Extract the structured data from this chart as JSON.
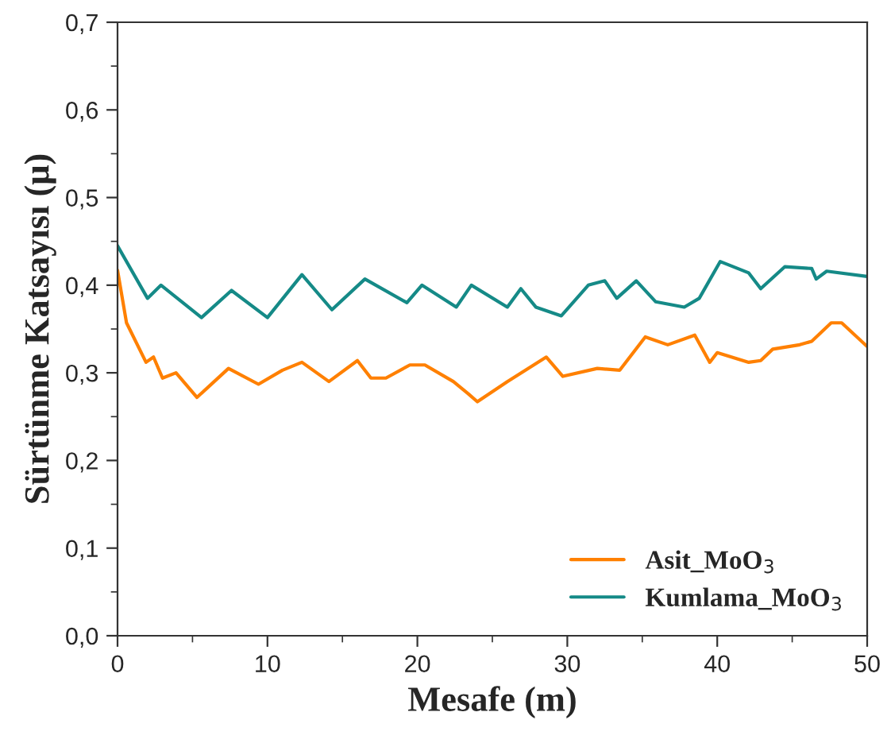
{
  "chart_data": {
    "type": "line",
    "xlabel": "Mesafe (m)",
    "ylabel": "Sürtünme Katsayısı (μ)",
    "xlim": [
      0,
      50
    ],
    "xticks": [
      0,
      10,
      20,
      30,
      40,
      50
    ],
    "ylim": [
      0,
      0.7
    ],
    "yticks": [
      {
        "value": 0,
        "label": "0,0"
      },
      {
        "value": 0.1,
        "label": "0,1"
      },
      {
        "value": 0.2,
        "label": "0,2"
      },
      {
        "value": 0.3,
        "label": "0,3"
      },
      {
        "value": 0.4,
        "label": "0,4"
      },
      {
        "value": 0.5,
        "label": "0,5"
      },
      {
        "value": 0.6,
        "label": "0,6"
      },
      {
        "value": 0.7,
        "label": "0,7"
      }
    ],
    "grid": false,
    "legend": "bottom right",
    "marker": "none",
    "line_style": "solid",
    "series": [
      {
        "name": "Asit_MoO$_{3}$",
        "color": "#ff8000",
        "x": [
          0,
          0.6,
          1.9,
          2.4,
          3,
          3.9,
          5.3,
          7.4,
          9.4,
          11,
          12.3,
          14.1,
          16,
          16.9,
          17.9,
          19.5,
          20.5,
          22.4,
          23.4,
          24,
          26,
          28.6,
          29.7,
          32,
          33.5,
          35.2,
          36.7,
          38.5,
          39.5,
          40,
          42.1,
          42.9,
          43.7,
          45.5,
          46.3,
          47.6,
          48.3,
          50
        ],
        "values": [
          0.417,
          0.357,
          0.312,
          0.318,
          0.294,
          0.3,
          0.272,
          0.305,
          0.287,
          0.303,
          0.312,
          0.29,
          0.314,
          0.294,
          0.294,
          0.309,
          0.309,
          0.29,
          0.276,
          0.267,
          0.29,
          0.318,
          0.296,
          0.305,
          0.303,
          0.341,
          0.332,
          0.343,
          0.312,
          0.323,
          0.312,
          0.314,
          0.327,
          0.332,
          0.336,
          0.357,
          0.357,
          0.33
        ]
      },
      {
        "name": "Kumlama_MoO$_{3}$",
        "color": "#158a87",
        "x": [
          0,
          2,
          2.9,
          5.6,
          7.6,
          10,
          12.3,
          14.3,
          16.5,
          19.3,
          20.3,
          22.6,
          23.6,
          26,
          26.9,
          27.9,
          29.6,
          31.4,
          32.5,
          33.3,
          34.6,
          35.9,
          37.8,
          38.8,
          40.2,
          42.1,
          42.9,
          44.5,
          46.3,
          46.6,
          47.3,
          50
        ],
        "values": [
          0.445,
          0.385,
          0.4,
          0.363,
          0.394,
          0.363,
          0.412,
          0.372,
          0.407,
          0.38,
          0.4,
          0.375,
          0.4,
          0.375,
          0.396,
          0.375,
          0.365,
          0.4,
          0.405,
          0.385,
          0.405,
          0.381,
          0.375,
          0.385,
          0.427,
          0.414,
          0.396,
          0.421,
          0.419,
          0.407,
          0.416,
          0.41
        ]
      }
    ]
  }
}
